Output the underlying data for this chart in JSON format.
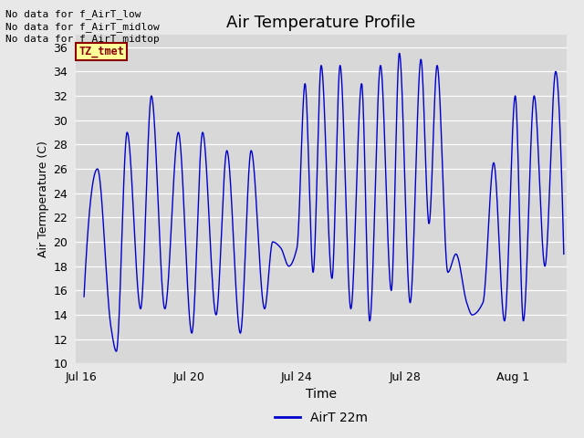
{
  "title": "Air Temperature Profile",
  "xlabel": "Time",
  "ylabel": "Air Termperature (C)",
  "ylim": [
    10,
    37
  ],
  "yticks": [
    10,
    12,
    14,
    16,
    18,
    20,
    22,
    24,
    26,
    28,
    30,
    32,
    34,
    36
  ],
  "legend_label": "AirT 22m",
  "line_color": "#0000cc",
  "fig_bg_color": "#e8e8e8",
  "axes_bg_color": "#d8d8d8",
  "no_data_texts": [
    "No data for f_AirT_low",
    "No data for f_AirT_midlow",
    "No data for f_AirT_midtop"
  ],
  "tz_label": "TZ_tmet",
  "xtick_labels": [
    "Jul 16",
    "Jul 20",
    "Jul 24",
    "Jul 28",
    "Aug 1"
  ],
  "xtick_positions": [
    0,
    4,
    8,
    12,
    16
  ],
  "xlim": [
    -0.2,
    18.0
  ],
  "peaks": [
    [
      0.1,
      15.5
    ],
    [
      0.6,
      26.0
    ],
    [
      1.1,
      13.0
    ],
    [
      1.3,
      11.0
    ],
    [
      1.7,
      29.0
    ],
    [
      2.2,
      14.5
    ],
    [
      2.6,
      32.0
    ],
    [
      3.1,
      14.5
    ],
    [
      3.6,
      29.0
    ],
    [
      4.1,
      12.5
    ],
    [
      4.5,
      29.0
    ],
    [
      5.0,
      14.0
    ],
    [
      5.4,
      27.5
    ],
    [
      5.9,
      12.5
    ],
    [
      6.3,
      27.5
    ],
    [
      6.8,
      14.5
    ],
    [
      7.1,
      20.0
    ],
    [
      7.4,
      19.5
    ],
    [
      7.7,
      18.0
    ],
    [
      8.0,
      19.5
    ],
    [
      8.3,
      33.0
    ],
    [
      8.6,
      17.5
    ],
    [
      8.9,
      34.5
    ],
    [
      9.3,
      17.0
    ],
    [
      9.6,
      34.5
    ],
    [
      10.0,
      14.5
    ],
    [
      10.4,
      33.0
    ],
    [
      10.7,
      13.5
    ],
    [
      11.1,
      34.5
    ],
    [
      11.5,
      16.0
    ],
    [
      11.8,
      35.5
    ],
    [
      12.2,
      15.0
    ],
    [
      12.6,
      35.0
    ],
    [
      12.9,
      21.5
    ],
    [
      13.2,
      34.5
    ],
    [
      13.6,
      17.5
    ],
    [
      13.9,
      19.0
    ],
    [
      14.3,
      15.0
    ],
    [
      14.5,
      14.0
    ],
    [
      14.9,
      15.0
    ],
    [
      15.3,
      26.5
    ],
    [
      15.7,
      13.5
    ],
    [
      16.1,
      32.0
    ],
    [
      16.4,
      13.5
    ],
    [
      16.8,
      32.0
    ],
    [
      17.2,
      18.0
    ],
    [
      17.6,
      34.0
    ],
    [
      17.9,
      19.0
    ]
  ]
}
